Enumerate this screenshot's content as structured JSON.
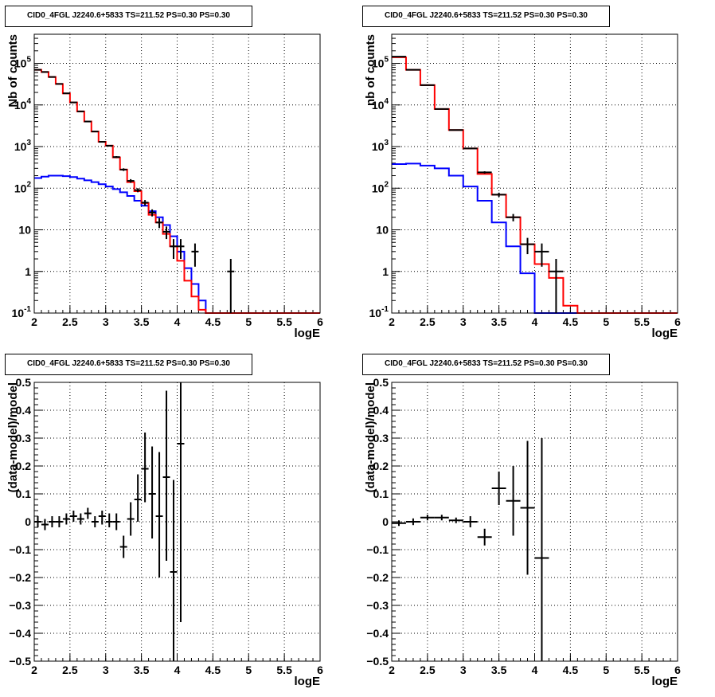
{
  "colors": {
    "data": "#000000",
    "total_model": "#ff0000",
    "component": "#0000ff",
    "grid": "#000000",
    "frame": "#000000"
  },
  "chart_data": [
    {
      "id": "top-left",
      "type": "line",
      "title": "CID0_4FGL J2240.6+5833 TS=211.52 PS=0.30 PS=0.30",
      "xlabel": "logE",
      "ylabel": "Nb of counts",
      "xlim": [
        2,
        6
      ],
      "ylim": [
        0.1,
        500000
      ],
      "yscale": "log",
      "grid": true,
      "x_ticks": [
        "2",
        "2.5",
        "3",
        "3.5",
        "4",
        "4.5",
        "5",
        "5.5",
        "6"
      ],
      "y_ticks": [
        "10^-1",
        "1",
        "10",
        "10^2",
        "10^3",
        "10^4",
        "10^5"
      ],
      "bin_edges": [
        2.0,
        2.1,
        2.2,
        2.3,
        2.4,
        2.5,
        2.6,
        2.7,
        2.8,
        2.9,
        3.0,
        3.1,
        3.2,
        3.3,
        3.4,
        3.5,
        3.6,
        3.7,
        3.8,
        3.9,
        4.0,
        4.1,
        4.2,
        4.3,
        4.4,
        4.5,
        4.6,
        4.7,
        4.8,
        4.9,
        5.0,
        5.1,
        5.2,
        5.3,
        5.4,
        5.5,
        5.6,
        5.7,
        5.8,
        5.9,
        6.0
      ],
      "series": [
        {
          "values": [
            70000,
            62000,
            47000,
            32000,
            19000,
            11500,
            7000,
            4000,
            2300,
            1300,
            1050,
            550,
            280,
            140,
            85,
            44,
            23,
            15,
            8,
            4,
            1.8,
            0.6,
            0.25,
            0.12,
            0.1,
            0.1,
            0.1,
            0.1,
            0.1,
            0.1,
            0.1,
            0.1,
            0.1,
            0.1,
            0.1,
            0.1,
            0.1,
            0.1,
            0.1,
            0.1
          ]
        },
        {
          "values": [
            175,
            190,
            200,
            200,
            195,
            185,
            170,
            155,
            140,
            125,
            110,
            95,
            80,
            65,
            50,
            38,
            28,
            20,
            13,
            7,
            3,
            1.2,
            0.5,
            0.2,
            0.1,
            0.1,
            0.1,
            0.1,
            0.1,
            0.1,
            0.1,
            0.1,
            0.1,
            0.1,
            0.1,
            0.1,
            0.1,
            0.1,
            0.1,
            0.1
          ]
        }
      ],
      "points": [
        {
          "x": 2.05,
          "y": 70000,
          "lo": 69500,
          "hi": 70500
        },
        {
          "x": 2.15,
          "y": 62000,
          "lo": 61500,
          "hi": 62500
        },
        {
          "x": 2.25,
          "y": 47000,
          "lo": 46500,
          "hi": 47500
        },
        {
          "x": 2.35,
          "y": 32000,
          "lo": 31600,
          "hi": 32400
        },
        {
          "x": 2.45,
          "y": 19000,
          "lo": 18700,
          "hi": 19300
        },
        {
          "x": 2.55,
          "y": 11500,
          "lo": 11300,
          "hi": 11700
        },
        {
          "x": 2.65,
          "y": 7000,
          "lo": 6850,
          "hi": 7150
        },
        {
          "x": 2.75,
          "y": 4000,
          "lo": 3900,
          "hi": 4100
        },
        {
          "x": 2.85,
          "y": 2300,
          "lo": 2230,
          "hi": 2370
        },
        {
          "x": 2.95,
          "y": 1300,
          "lo": 1250,
          "hi": 1350
        },
        {
          "x": 3.05,
          "y": 1050,
          "lo": 1010,
          "hi": 1090
        },
        {
          "x": 3.15,
          "y": 560,
          "lo": 530,
          "hi": 590
        },
        {
          "x": 3.25,
          "y": 280,
          "lo": 260,
          "hi": 300
        },
        {
          "x": 3.35,
          "y": 150,
          "lo": 135,
          "hi": 165
        },
        {
          "x": 3.45,
          "y": 90,
          "lo": 80,
          "hi": 100
        },
        {
          "x": 3.55,
          "y": 45,
          "lo": 38,
          "hi": 52
        },
        {
          "x": 3.65,
          "y": 26,
          "lo": 21,
          "hi": 31
        },
        {
          "x": 3.75,
          "y": 15,
          "lo": 11,
          "hi": 19
        },
        {
          "x": 3.85,
          "y": 9,
          "lo": 6,
          "hi": 12
        },
        {
          "x": 3.95,
          "y": 4,
          "lo": 2,
          "hi": 6
        },
        {
          "x": 4.05,
          "y": 4,
          "lo": 2,
          "hi": 6
        },
        {
          "x": 4.25,
          "y": 3,
          "lo": 1.3,
          "hi": 4.7
        },
        {
          "x": 4.75,
          "y": 1,
          "lo": 0.1,
          "hi": 2
        }
      ]
    },
    {
      "id": "top-right",
      "type": "line",
      "title": "CID0_4FGL J2240.6+5833 TS=211.52 PS=0.30 PS=0.30",
      "xlabel": "logE",
      "ylabel": "nb of counts",
      "xlim": [
        2,
        6
      ],
      "ylim": [
        0.1,
        500000
      ],
      "yscale": "log",
      "grid": true,
      "x_ticks": [
        "2",
        "2.5",
        "3",
        "3.5",
        "4",
        "4.5",
        "5",
        "5.5",
        "6"
      ],
      "y_ticks": [
        "10^-1",
        "1",
        "10",
        "10^2",
        "10^3",
        "10^4",
        "10^5"
      ],
      "bin_edges": [
        2.0,
        2.2,
        2.4,
        2.6,
        2.8,
        3.0,
        3.2,
        3.4,
        3.6,
        3.8,
        4.0,
        4.2,
        4.4,
        4.6,
        4.8,
        5.0,
        5.2,
        5.4,
        5.6,
        5.8,
        6.0
      ],
      "series": [
        {
          "values": [
            140000,
            70000,
            30000,
            8000,
            2500,
            900,
            220,
            70,
            20,
            4.5,
            1.5,
            0.7,
            0.15,
            0.1,
            0.1,
            0.1,
            0.1,
            0.1,
            0.1,
            0.1
          ]
        },
        {
          "values": [
            380,
            390,
            350,
            300,
            200,
            110,
            50,
            15,
            4,
            0.9,
            0.1,
            0.1,
            0.1,
            0.1,
            0.1,
            0.1,
            0.1,
            0.1,
            0.1,
            0.1
          ]
        }
      ],
      "points": [
        {
          "x": 2.1,
          "y": 145000,
          "lo": 144000,
          "hi": 146000
        },
        {
          "x": 2.3,
          "y": 70000,
          "lo": 69500,
          "hi": 70500
        },
        {
          "x": 2.5,
          "y": 30000,
          "lo": 29700,
          "hi": 30300
        },
        {
          "x": 2.7,
          "y": 8000,
          "lo": 7900,
          "hi": 8100
        },
        {
          "x": 2.9,
          "y": 2500,
          "lo": 2450,
          "hi": 2550
        },
        {
          "x": 3.1,
          "y": 900,
          "lo": 870,
          "hi": 930
        },
        {
          "x": 3.3,
          "y": 240,
          "lo": 225,
          "hi": 255
        },
        {
          "x": 3.5,
          "y": 70,
          "lo": 62,
          "hi": 78
        },
        {
          "x": 3.7,
          "y": 20,
          "lo": 16,
          "hi": 24
        },
        {
          "x": 3.9,
          "y": 4.5,
          "lo": 2.6,
          "hi": 6.4
        },
        {
          "x": 4.1,
          "y": 3,
          "lo": 1.3,
          "hi": 4.7
        },
        {
          "x": 4.3,
          "y": 1,
          "lo": 0.1,
          "hi": 2
        }
      ]
    },
    {
      "id": "bottom-left",
      "type": "scatter",
      "title": "CID0_4FGL J2240.6+5833 TS=211.52 PS=0.30 PS=0.30",
      "xlabel": "logE",
      "ylabel": "(data-model)/model",
      "xlim": [
        2,
        6
      ],
      "ylim": [
        -0.5,
        0.5
      ],
      "grid": true,
      "x_ticks": [
        "2",
        "2.5",
        "3",
        "3.5",
        "4",
        "4.5",
        "5",
        "5.5",
        "6"
      ],
      "y_ticks": [
        "-0.5",
        "-0.4",
        "-0.3",
        "-0.2",
        "-0.1",
        "0",
        "0.1",
        "0.2",
        "0.3",
        "0.4",
        "0.5"
      ],
      "points": [
        {
          "x": 2.05,
          "y": 0.0,
          "lo": -0.02,
          "hi": 0.02
        },
        {
          "x": 2.15,
          "y": -0.01,
          "lo": -0.03,
          "hi": 0.01
        },
        {
          "x": 2.25,
          "y": 0.0,
          "lo": -0.02,
          "hi": 0.02
        },
        {
          "x": 2.35,
          "y": 0.0,
          "lo": -0.02,
          "hi": 0.02
        },
        {
          "x": 2.45,
          "y": 0.01,
          "lo": -0.01,
          "hi": 0.03
        },
        {
          "x": 2.55,
          "y": 0.02,
          "lo": 0.0,
          "hi": 0.04
        },
        {
          "x": 2.65,
          "y": 0.01,
          "lo": -0.01,
          "hi": 0.03
        },
        {
          "x": 2.75,
          "y": 0.03,
          "lo": 0.01,
          "hi": 0.05
        },
        {
          "x": 2.85,
          "y": 0.0,
          "lo": -0.02,
          "hi": 0.02
        },
        {
          "x": 2.95,
          "y": 0.02,
          "lo": -0.01,
          "hi": 0.04
        },
        {
          "x": 3.05,
          "y": 0.0,
          "lo": -0.02,
          "hi": 0.03
        },
        {
          "x": 3.15,
          "y": 0.0,
          "lo": -0.03,
          "hi": 0.03
        },
        {
          "x": 3.25,
          "y": -0.09,
          "lo": -0.13,
          "hi": -0.05
        },
        {
          "x": 3.35,
          "y": 0.01,
          "lo": -0.05,
          "hi": 0.07
        },
        {
          "x": 3.45,
          "y": 0.08,
          "lo": 0.0,
          "hi": 0.17
        },
        {
          "x": 3.55,
          "y": 0.19,
          "lo": 0.07,
          "hi": 0.32
        },
        {
          "x": 3.65,
          "y": 0.1,
          "lo": -0.06,
          "hi": 0.27
        },
        {
          "x": 3.75,
          "y": 0.02,
          "lo": -0.2,
          "hi": 0.25
        },
        {
          "x": 3.85,
          "y": 0.16,
          "lo": -0.14,
          "hi": 0.47
        },
        {
          "x": 3.95,
          "y": -0.18,
          "lo": -0.5,
          "hi": 0.15
        },
        {
          "x": 4.05,
          "y": 0.28,
          "lo": -0.36,
          "hi": 0.5
        }
      ]
    },
    {
      "id": "bottom-right",
      "type": "scatter",
      "title": "CID0_4FGL J2240.6+5833 TS=211.52 PS=0.30 PS=0.30",
      "xlabel": "logE",
      "ylabel": "(data-model)/model",
      "xlim": [
        2,
        6
      ],
      "ylim": [
        -0.5,
        0.5
      ],
      "grid": true,
      "x_ticks": [
        "2",
        "2.5",
        "3",
        "3.5",
        "4",
        "4.5",
        "5",
        "5.5",
        "6"
      ],
      "y_ticks": [
        "-0.5",
        "-0.4",
        "-0.3",
        "-0.2",
        "-0.1",
        "0",
        "0.1",
        "0.2",
        "0.3",
        "0.4",
        "0.5"
      ],
      "points": [
        {
          "x": 2.1,
          "y": -0.005,
          "lo": -0.015,
          "hi": 0.005
        },
        {
          "x": 2.3,
          "y": 0.0,
          "lo": -0.012,
          "hi": 0.012
        },
        {
          "x": 2.5,
          "y": 0.015,
          "lo": 0.005,
          "hi": 0.025
        },
        {
          "x": 2.7,
          "y": 0.015,
          "lo": 0.005,
          "hi": 0.025
        },
        {
          "x": 2.9,
          "y": 0.005,
          "lo": -0.005,
          "hi": 0.015
        },
        {
          "x": 3.1,
          "y": 0.0,
          "lo": -0.02,
          "hi": 0.02
        },
        {
          "x": 3.3,
          "y": -0.055,
          "lo": -0.085,
          "hi": -0.025
        },
        {
          "x": 3.5,
          "y": 0.12,
          "lo": 0.06,
          "hi": 0.18
        },
        {
          "x": 3.7,
          "y": 0.075,
          "lo": -0.05,
          "hi": 0.2
        },
        {
          "x": 3.9,
          "y": 0.05,
          "lo": -0.19,
          "hi": 0.29
        },
        {
          "x": 4.1,
          "y": -0.13,
          "lo": -0.5,
          "hi": 0.3
        }
      ]
    }
  ]
}
